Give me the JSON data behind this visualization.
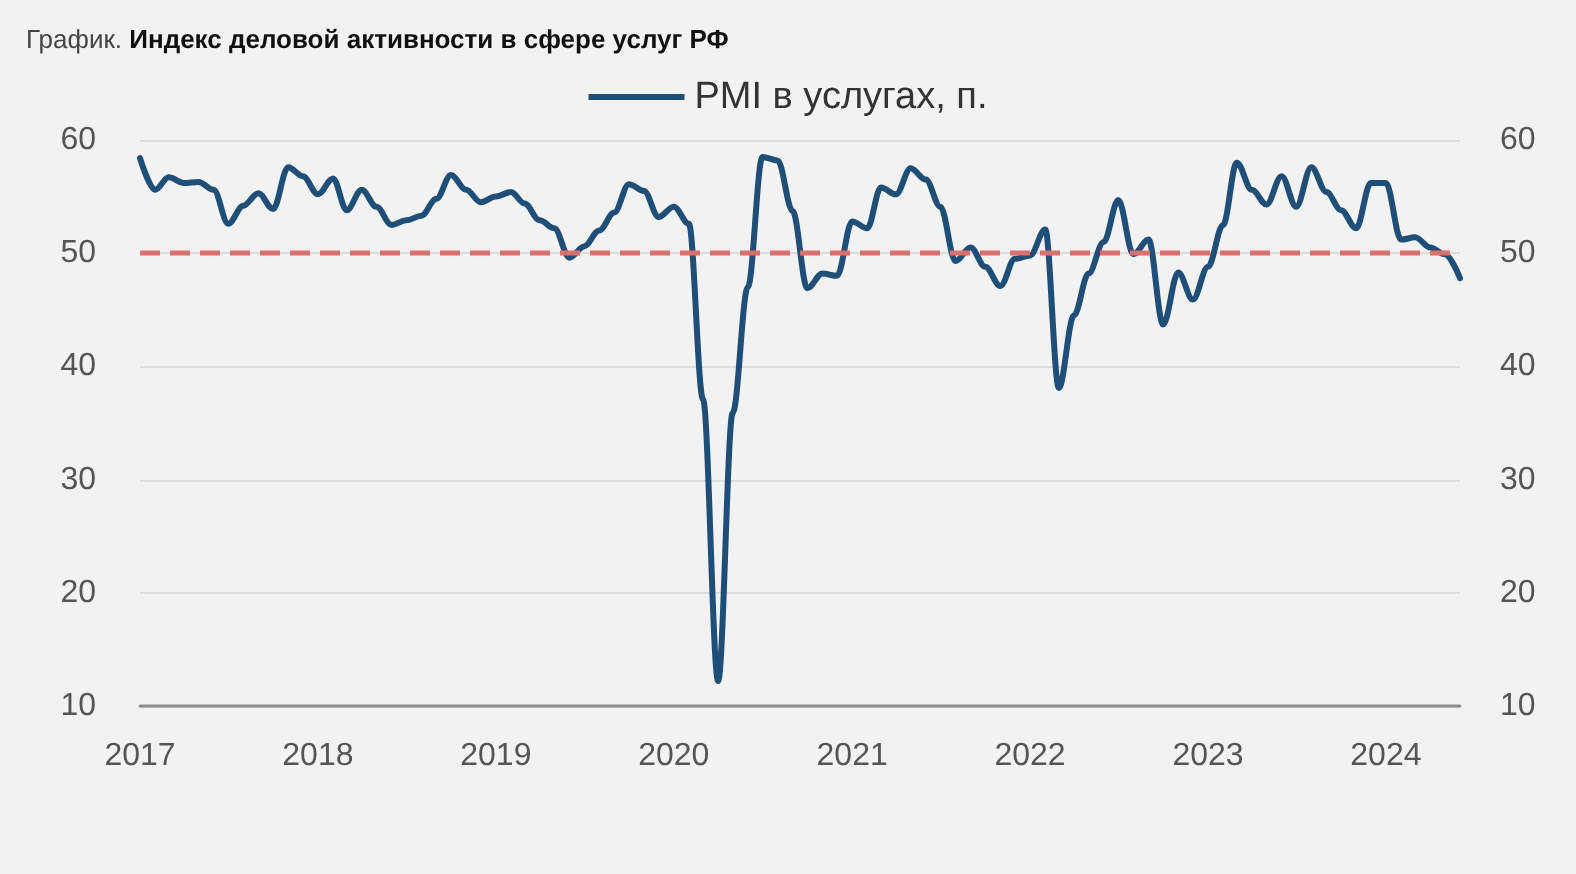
{
  "chart_data": {
    "type": "line",
    "title": "График. Индекс деловой активности в сфере услуг РФ",
    "x": [
      "2017-01",
      "2017-02",
      "2017-03",
      "2017-04",
      "2017-05",
      "2017-06",
      "2017-07",
      "2017-08",
      "2017-09",
      "2017-10",
      "2017-11",
      "2017-12",
      "2018-01",
      "2018-02",
      "2018-03",
      "2018-04",
      "2018-05",
      "2018-06",
      "2018-07",
      "2018-08",
      "2018-09",
      "2018-10",
      "2018-11",
      "2018-12",
      "2019-01",
      "2019-02",
      "2019-03",
      "2019-04",
      "2019-05",
      "2019-06",
      "2019-07",
      "2019-08",
      "2019-09",
      "2019-10",
      "2019-11",
      "2019-12",
      "2020-01",
      "2020-02",
      "2020-03",
      "2020-04",
      "2020-05",
      "2020-06",
      "2020-07",
      "2020-08",
      "2020-09",
      "2020-10",
      "2020-11",
      "2020-12",
      "2021-01",
      "2021-02",
      "2021-03",
      "2021-04",
      "2021-05",
      "2021-06",
      "2021-07",
      "2021-08",
      "2021-09",
      "2021-10",
      "2021-11",
      "2021-12",
      "2022-01",
      "2022-02",
      "2022-03",
      "2022-04",
      "2022-05",
      "2022-06",
      "2022-07",
      "2022-08",
      "2022-09",
      "2022-10",
      "2022-11",
      "2022-12",
      "2023-01",
      "2023-02",
      "2023-03",
      "2023-04",
      "2023-05",
      "2023-06",
      "2023-07",
      "2023-08",
      "2023-09",
      "2023-10",
      "2023-11",
      "2023-12",
      "2024-01",
      "2024-02",
      "2024-03",
      "2024-04",
      "2024-05",
      "2024-06"
    ],
    "series": [
      {
        "name": "PMI в услугах, п.",
        "color": "#1f4e78",
        "values": [
          58.4,
          55.6,
          56.7,
          56.2,
          56.3,
          55.6,
          52.6,
          54.2,
          55.3,
          53.9,
          57.6,
          56.8,
          55.2,
          56.6,
          53.8,
          55.6,
          54.1,
          52.5,
          52.9,
          53.3,
          54.8,
          56.9,
          55.6,
          54.5,
          55.0,
          55.4,
          54.4,
          52.9,
          52.2,
          49.6,
          50.6,
          52.0,
          53.6,
          56.1,
          55.5,
          53.2,
          54.1,
          52.6,
          37.1,
          12.2,
          35.9,
          47.0,
          58.5,
          58.2,
          53.7,
          46.9,
          48.2,
          48.0,
          52.8,
          52.2,
          55.8,
          55.2,
          57.5,
          56.5,
          54.1,
          49.3,
          50.5,
          48.8,
          47.1,
          49.5,
          49.8,
          52.1,
          38.1,
          44.5,
          48.2,
          51.0,
          54.7,
          49.9,
          51.2,
          43.7,
          48.3,
          45.9,
          48.8,
          52.5,
          58.0,
          55.6,
          54.3,
          56.8,
          54.1,
          57.6,
          55.4,
          53.8,
          52.2,
          56.2,
          56.2,
          51.2,
          51.4,
          50.5,
          49.9,
          47.8
        ]
      }
    ],
    "xlim": [
      "2017-01",
      "2024-06"
    ],
    "xticks": [
      "2017",
      "2018",
      "2019",
      "2020",
      "2021",
      "2022",
      "2023",
      "2024"
    ],
    "ylim": [
      10,
      60
    ],
    "yticks": [
      10,
      20,
      30,
      40,
      50,
      60
    ],
    "y2lim": [
      10,
      60
    ],
    "y2ticks": [
      10,
      20,
      30,
      40,
      50,
      60
    ],
    "ref_lines": [
      {
        "axis": "y",
        "value": 50,
        "color": "#d9726d",
        "line_style": "dashed"
      }
    ],
    "grid": "y",
    "legend": "top",
    "marker": "none"
  }
}
